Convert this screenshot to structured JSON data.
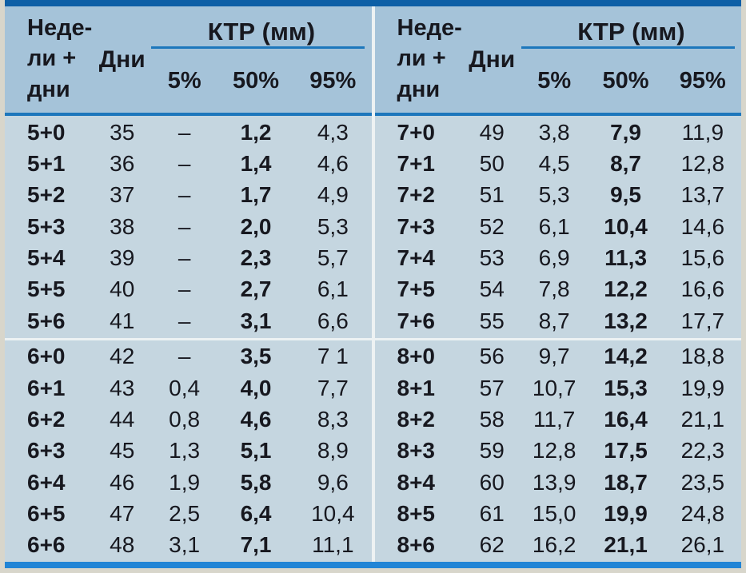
{
  "headers": {
    "weeks": "Неде-\nли +\nдни",
    "days": "Дни",
    "ktr": "КТР (мм)",
    "p5": "5%",
    "p50": "50%",
    "p95": "95%"
  },
  "table": {
    "halves": [
      {
        "groups": [
          [
            [
              "5+0",
              "35",
              "–",
              "1,2",
              "4,3"
            ],
            [
              "5+1",
              "36",
              "–",
              "1,4",
              "4,6"
            ],
            [
              "5+2",
              "37",
              "–",
              "1,7",
              "4,9"
            ],
            [
              "5+3",
              "38",
              "–",
              "2,0",
              "5,3"
            ],
            [
              "5+4",
              "39",
              "–",
              "2,3",
              "5,7"
            ],
            [
              "5+5",
              "40",
              "–",
              "2,7",
              "6,1"
            ],
            [
              "5+6",
              "41",
              "–",
              "3,1",
              "6,6"
            ]
          ],
          [
            [
              "6+0",
              "42",
              "–",
              "3,5",
              "7 1"
            ],
            [
              "6+1",
              "43",
              "0,4",
              "4,0",
              "7,7"
            ],
            [
              "6+2",
              "44",
              "0,8",
              "4,6",
              "8,3"
            ],
            [
              "6+3",
              "45",
              "1,3",
              "5,1",
              "8,9"
            ],
            [
              "6+4",
              "46",
              "1,9",
              "5,8",
              "9,6"
            ],
            [
              "6+5",
              "47",
              "2,5",
              "6,4",
              "10,4"
            ],
            [
              "6+6",
              "48",
              "3,1",
              "7,1",
              "11,1"
            ]
          ]
        ]
      },
      {
        "groups": [
          [
            [
              "7+0",
              "49",
              "3,8",
              "7,9",
              "11,9"
            ],
            [
              "7+1",
              "50",
              "4,5",
              "8,7",
              "12,8"
            ],
            [
              "7+2",
              "51",
              "5,3",
              "9,5",
              "13,7"
            ],
            [
              "7+3",
              "52",
              "6,1",
              "10,4",
              "14,6"
            ],
            [
              "7+4",
              "53",
              "6,9",
              "11,3",
              "15,6"
            ],
            [
              "7+5",
              "54",
              "7,8",
              "12,2",
              "16,6"
            ],
            [
              "7+6",
              "55",
              "8,7",
              "13,2",
              "17,7"
            ]
          ],
          [
            [
              "8+0",
              "56",
              "9,7",
              "14,2",
              "18,8"
            ],
            [
              "8+1",
              "57",
              "10,7",
              "15,3",
              "19,9"
            ],
            [
              "8+2",
              "58",
              "11,7",
              "16,4",
              "21,1"
            ],
            [
              "8+3",
              "59",
              "12,8",
              "17,5",
              "22,3"
            ],
            [
              "8+4",
              "60",
              "13,9",
              "18,7",
              "23,5"
            ],
            [
              "8+5",
              "61",
              "15,0",
              "19,9",
              "24,8"
            ],
            [
              "8+6",
              "62",
              "16,2",
              "21,1",
              "26,1"
            ]
          ]
        ]
      }
    ]
  },
  "colors": {
    "paper": "#d8d6cb",
    "bg-body": "#c5d6e0",
    "bg-header": "#a5c3d9",
    "line-blue": "#1d77bc",
    "border-top": "#0d5fa6",
    "border-bottom": "#2185d6",
    "divider": "#edf2f3",
    "text": "#17181f"
  }
}
